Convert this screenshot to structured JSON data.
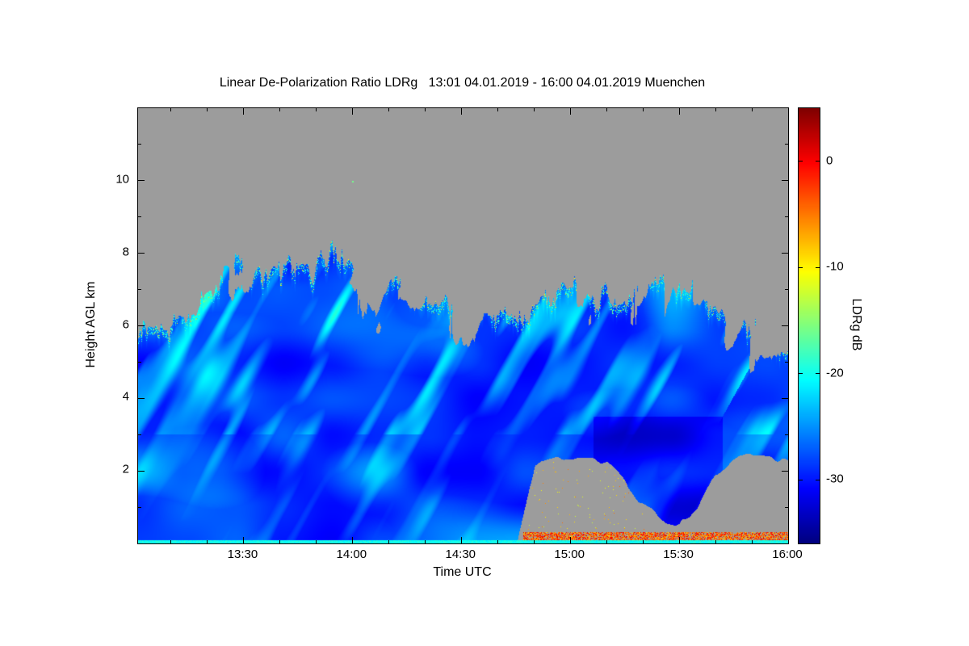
{
  "chart_data": {
    "type": "heatmap",
    "title": "Linear De-Polarization Ratio LDRg   13:01 04.01.2019 - 16:00 04.01.2019 Muenchen",
    "site": "Muenchen",
    "date": "04.01.2019",
    "time_span": "13:01 - 16:00",
    "xlabel": "Time UTC",
    "ylabel": "Height AGL km",
    "x_range": [
      "13:01",
      "16:00"
    ],
    "x_ticks": [
      "13:30",
      "14:00",
      "14:30",
      "15:00",
      "15:30",
      "16:00"
    ],
    "y_range_km": [
      0,
      12
    ],
    "y_ticks_km": [
      2,
      4,
      6,
      8,
      10
    ],
    "colorbar": {
      "label": "LDRg dB",
      "ticks_db": [
        0,
        -10,
        -20,
        -30
      ],
      "range_db": [
        5,
        -36
      ],
      "colormap": "jet"
    },
    "no_signal_color": "#9c9c9c",
    "profile_samples": 37,
    "cloud_top_km": [
      5.8,
      5.9,
      6.0,
      6.3,
      7.1,
      7.8,
      7.3,
      7.6,
      7.8,
      7.5,
      7.7,
      7.9,
      7.4,
      7.2,
      7.3,
      7.0,
      6.8,
      6.5,
      6.4,
      6.3,
      6.2,
      6.3,
      6.5,
      6.7,
      6.9,
      7.0,
      6.9,
      6.8,
      7.0,
      7.2,
      7.3,
      7.0,
      6.6,
      6.2,
      6.0,
      5.7,
      5.5
    ],
    "cloud_base_km": [
      0,
      0,
      0,
      0,
      0,
      0,
      0,
      0,
      0,
      0,
      0,
      0,
      0,
      0,
      0,
      0,
      0,
      0,
      0,
      0,
      0,
      0,
      2.2,
      2.3,
      2.4,
      2.3,
      2.2,
      1.7,
      1.1,
      0.7,
      0.5,
      1.0,
      1.9,
      2.3,
      2.4,
      2.4,
      2.3
    ],
    "field_summary": {
      "background": "no signal (gray)",
      "cloud_typical_db": -29,
      "cloud_db_range": [
        -33.5,
        -17
      ],
      "bright_streak_db": -20,
      "surface_line": {
        "height_km": 0.085,
        "ldr_db": -20
      },
      "ground_clutter": {
        "t_start": "14:47",
        "height_km": [
          0.085,
          0.32
        ],
        "ldr_db_range": [
          -9,
          2
        ]
      },
      "clear_notch": {
        "t_start": "14:47",
        "t_end": "16:00",
        "top_km": 2.4,
        "description": "no-signal gap below ~2.4 km with V-shaped cloud intrusion down to ~0.5 km near 15:30"
      },
      "isolated_dots": [
        {
          "time": "14:00",
          "height_km": 10.0,
          "ldr_db": -16
        }
      ]
    }
  }
}
